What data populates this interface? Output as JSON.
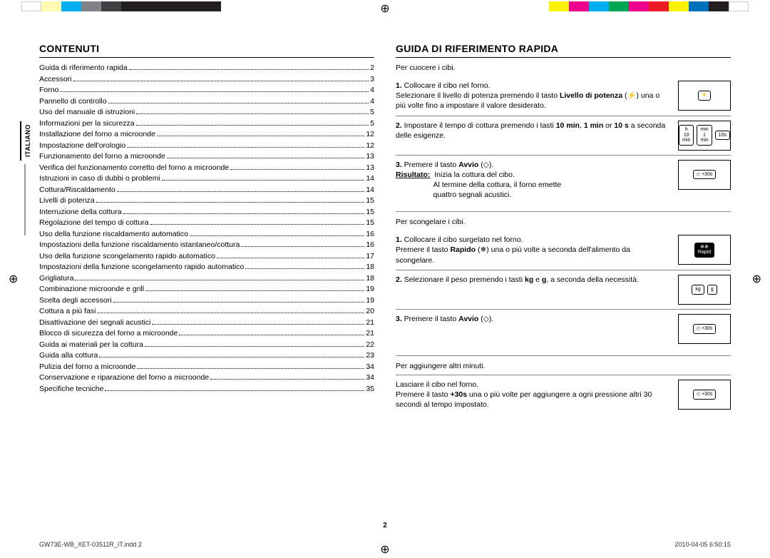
{
  "color_bars": {
    "left": [
      "#ffffff",
      "#fefcb0",
      "#00aeef",
      "#808285",
      "#414042",
      "#231f20",
      "#231f20",
      "#231f20",
      "#231f20",
      "#231f20"
    ],
    "right": [
      "#fff200",
      "#ec008c",
      "#00aeef",
      "#00a651",
      "#ec008c",
      "#ed1c24",
      "#fff200",
      "#0072bc",
      "#231f20",
      "#ffffff"
    ]
  },
  "side_tab": "ITALIANO",
  "left_col": {
    "heading": "CONTENUTI",
    "toc": [
      {
        "t": "Guida di riferimento rapida",
        "p": "2"
      },
      {
        "t": "Accessori",
        "p": "3"
      },
      {
        "t": "Forno",
        "p": "4"
      },
      {
        "t": "Pannello di controllo",
        "p": "4"
      },
      {
        "t": "Uso del manuale di istruzioni",
        "p": "5"
      },
      {
        "t": "Informazioni per la sicurezza",
        "p": "5"
      },
      {
        "t": "Installazione del forno a microonde",
        "p": "12"
      },
      {
        "t": "Impostazione dell'orologio",
        "p": "12"
      },
      {
        "t": "Funzionamento del forno a microonde",
        "p": "13"
      },
      {
        "t": "Verifica del funzionamento corretto del forno a microonde",
        "p": "13"
      },
      {
        "t": "Istruzioni in caso di dubbi o problemi",
        "p": "14"
      },
      {
        "t": "Cottura/Riscaldamento",
        "p": "14"
      },
      {
        "t": "Livelli di potenza",
        "p": "15"
      },
      {
        "t": "Interruzione della cottura",
        "p": "15"
      },
      {
        "t": "Regolazione del tempo di cottura",
        "p": "15"
      },
      {
        "t": "Uso della funzione riscaldamento automatico",
        "p": "16"
      },
      {
        "t": "Impostazioni della funzione riscaldamento istantaneo/cottura",
        "p": "16"
      },
      {
        "t": "Uso della funzione scongelamento rapido automatico",
        "p": "17"
      },
      {
        "t": "Impostazioni della funzione scongelamento rapido automatico",
        "p": "18"
      },
      {
        "t": "Grigliatura",
        "p": "18"
      },
      {
        "t": "Combinazione microonde e grill",
        "p": "19"
      },
      {
        "t": "Scelta degli accessori",
        "p": "19"
      },
      {
        "t": "Cottura a più fasi",
        "p": "20"
      },
      {
        "t": "Disattivazione dei segnali acustici",
        "p": "21"
      },
      {
        "t": "Blocco di sicurezza del forno a microonde",
        "p": "21"
      },
      {
        "t": "Guida ai materiali per la cottura",
        "p": "22"
      },
      {
        "t": "Guida alla cottura",
        "p": "23"
      },
      {
        "t": "Pulizia del forno a microonde",
        "p": "34"
      },
      {
        "t": "Conservazione e riparazione del forno a microonde",
        "p": "34"
      },
      {
        "t": "Specifiche tecniche",
        "p": "35"
      }
    ]
  },
  "right_col": {
    "heading": "GUIDA DI RIFERIMENTO RAPIDA",
    "cook": {
      "intro": "Per cuocere i cibi.",
      "steps": [
        {
          "n": "1.",
          "html": "Collocare il cibo nel forno.<br>Selezionare il livello di potenza premendo il tasto <b>Livello di potenza</b> (⚡) una o più volte fino a impostare il valore desiderato.",
          "icon": "power"
        },
        {
          "n": "2.",
          "html": "Impostare il tempo di cottura premendo i tasti <b>10 min</b>, <b>1 min</b> or <b>10 s</b> a seconda delle esigenze.",
          "icon": "time"
        },
        {
          "n": "3.",
          "html": "Premere il tasto <b>Avvio</b> (◇).<br><span class='result-label'>Risultato:</span>&nbsp;&nbsp;Inizia la cottura del cibo.<br>&nbsp;&nbsp;&nbsp;&nbsp;&nbsp;&nbsp;&nbsp;&nbsp;&nbsp;&nbsp;&nbsp;&nbsp;&nbsp;&nbsp;&nbsp;&nbsp;&nbsp;&nbsp;Al termine della cottura, il forno emette<br>&nbsp;&nbsp;&nbsp;&nbsp;&nbsp;&nbsp;&nbsp;&nbsp;&nbsp;&nbsp;&nbsp;&nbsp;&nbsp;&nbsp;&nbsp;&nbsp;&nbsp;&nbsp;quattro segnali acustici.",
          "icon": "start"
        }
      ]
    },
    "defrost": {
      "intro": "Per scongelare i cibi.",
      "steps": [
        {
          "n": "1.",
          "html": "Collocare il cibo surgelato nel forno.<br>Premere il tasto <b>Rapido</b> (❄) una o più volte a seconda dell'alimento da scongelare.",
          "icon": "rapid"
        },
        {
          "n": "2.",
          "html": "Selezionare il peso premendo i tasti <b>kg</b> e <b>g</b>, a seconda della necessità.",
          "icon": "weight"
        },
        {
          "n": "3.",
          "html": "Premere il tasto <b>Avvio</b> (◇).",
          "icon": "start"
        }
      ]
    },
    "extra": {
      "intro": "Per aggiungere altri minuti.",
      "text": "Lasciare il cibo nel forno.<br>Premere il tasto <b>+30s</b> una o più volte per aggiungere a ogni pressione altri 30 secondi al tempo impostato.",
      "icon": "start"
    }
  },
  "page_number": "2",
  "footer": {
    "left": "GW73E-WB_XET-03511R_IT.indd   2",
    "right": "2010-04-05   6:50:15"
  }
}
